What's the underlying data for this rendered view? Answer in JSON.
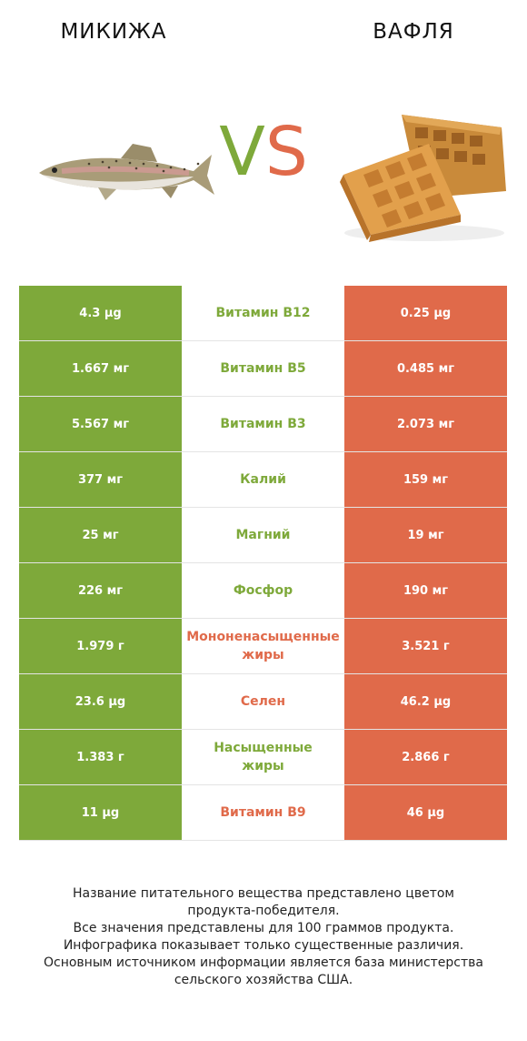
{
  "header": {
    "left_title": "МИКИЖА",
    "right_title": "ВАФЛЯ",
    "vs_v": "V",
    "vs_s": "S"
  },
  "colors": {
    "left": "#7ea93a",
    "right": "#e06a4a"
  },
  "rows": [
    {
      "name": "Витамин B12",
      "left": "4.3 µg",
      "right": "0.25 µg",
      "winner": "left"
    },
    {
      "name": "Витамин B5",
      "left": "1.667 мг",
      "right": "0.485 мг",
      "winner": "left"
    },
    {
      "name": "Витамин B3",
      "left": "5.567 мг",
      "right": "2.073 мг",
      "winner": "left"
    },
    {
      "name": "Калий",
      "left": "377 мг",
      "right": "159 мг",
      "winner": "left"
    },
    {
      "name": "Магний",
      "left": "25 мг",
      "right": "19 мг",
      "winner": "left"
    },
    {
      "name": "Фосфор",
      "left": "226 мг",
      "right": "190 мг",
      "winner": "left"
    },
    {
      "name": "Мононенасыщенные\nжиры",
      "left": "1.979 г",
      "right": "3.521 г",
      "winner": "right"
    },
    {
      "name": "Селен",
      "left": "23.6 µg",
      "right": "46.2 µg",
      "winner": "right"
    },
    {
      "name": "Насыщенные\nжиры",
      "left": "1.383 г",
      "right": "2.866 г",
      "winner": "left"
    },
    {
      "name": "Витамин B9",
      "left": "11 µg",
      "right": "46 µg",
      "winner": "right"
    }
  ],
  "footer": [
    "Название питательного вещества представлено цветом",
    "продукта-победителя.",
    "Все значения представлены для 100 граммов продукта.",
    "Инфографика показывает только существенные различия.",
    "Основным источником информации является база министерства",
    "сельского хозяйства США."
  ]
}
